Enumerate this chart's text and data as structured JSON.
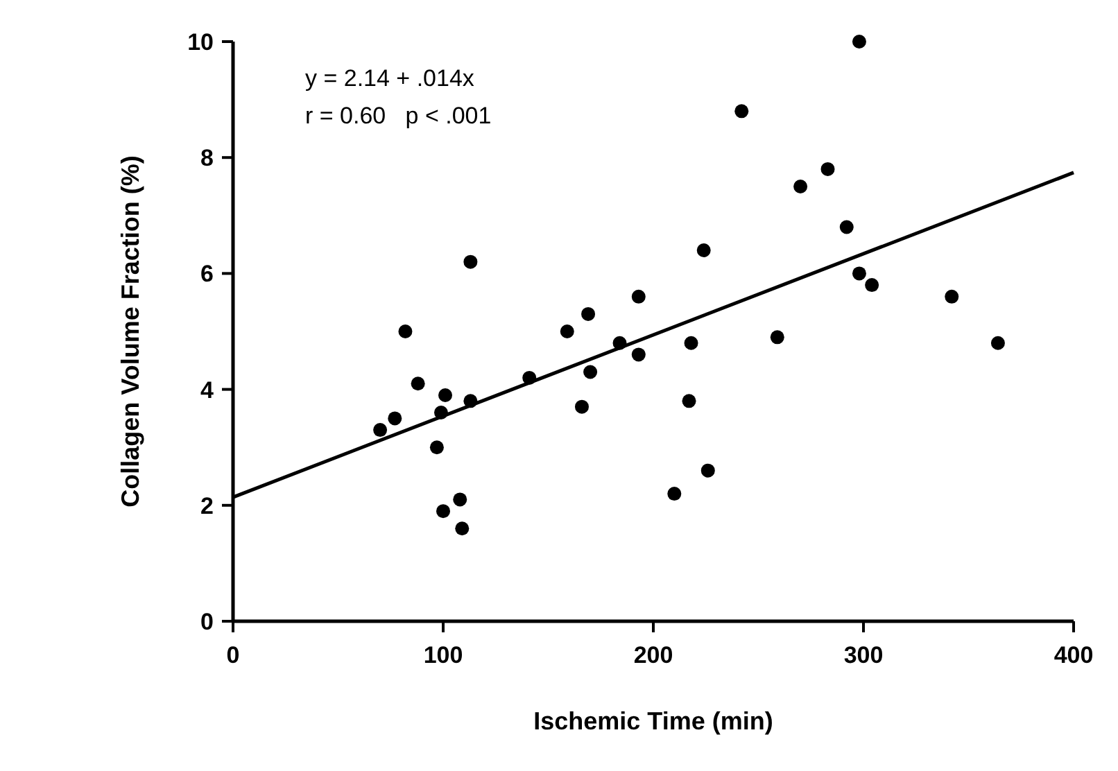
{
  "chart_data": {
    "type": "scatter",
    "xlabel": "Ischemic Time (min)",
    "ylabel": "Collagen Volume Fraction (%)",
    "xlim": [
      0,
      400
    ],
    "xticks": [
      0,
      100,
      200,
      300,
      400
    ],
    "ylim": [
      0,
      10
    ],
    "yticks": [
      0,
      2,
      4,
      6,
      8,
      10
    ],
    "grid": false,
    "marker": "circle",
    "annotations": [
      "y = 2.14 + .014x",
      "r = 0.60   p < .001"
    ],
    "series": [
      {
        "color": "#000000",
        "x": [
          70,
          77,
          82,
          88,
          101,
          99,
          97,
          100,
          108,
          109,
          113,
          113,
          141,
          159,
          166,
          169,
          170,
          184,
          193,
          193,
          210,
          217,
          218,
          224,
          226,
          242,
          259,
          270,
          283,
          292,
          298,
          298,
          304,
          342,
          364
        ],
        "values": [
          3.3,
          3.5,
          5.0,
          4.1,
          3.9,
          3.6,
          3.0,
          1.9,
          2.1,
          1.6,
          3.8,
          6.2,
          4.2,
          5.0,
          3.7,
          5.3,
          4.3,
          4.8,
          5.6,
          4.6,
          2.2,
          3.8,
          4.8,
          6.4,
          2.6,
          8.8,
          4.9,
          7.5,
          7.8,
          6.8,
          10.0,
          6.0,
          5.8,
          5.6,
          4.8
        ]
      },
      {
        "type": "line",
        "color": "#000000",
        "marker": "none",
        "line_style": "solid",
        "x": [
          0,
          400
        ],
        "values": [
          2.14,
          7.74
        ]
      }
    ]
  }
}
